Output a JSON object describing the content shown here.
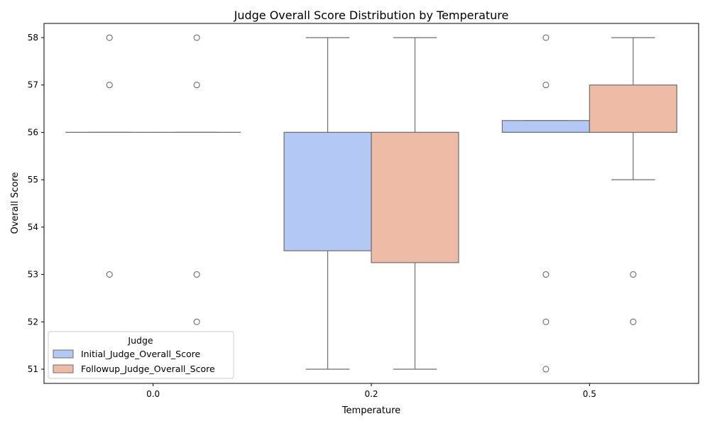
{
  "chart_data": {
    "type": "box",
    "title": "Judge Overall Score Distribution by Temperature",
    "xlabel": "Temperature",
    "ylabel": "Overall Score",
    "categories": [
      "0.0",
      "0.2",
      "0.5"
    ],
    "ylim": [
      50.7,
      58.3
    ],
    "yticks": [
      51,
      52,
      53,
      54,
      55,
      56,
      57,
      58
    ],
    "legend": {
      "title": "Judge",
      "position": "lower-left"
    },
    "colors": {
      "axis": "#000000",
      "box_edge": "#6e6e6e",
      "outlier_edge": "#6e6e6e"
    },
    "series": [
      {
        "name": "Initial_Judge_Overall_Score",
        "color": "#b3c8f4",
        "boxes": [
          {
            "q1": 56,
            "median": 56,
            "q3": 56,
            "whisker_low": 56,
            "whisker_high": 56,
            "outliers": [
              58,
              57,
              53
            ]
          },
          {
            "q1": 53.5,
            "median": 56,
            "q3": 56,
            "whisker_low": 51,
            "whisker_high": 58,
            "outliers": []
          },
          {
            "q1": 56,
            "median": 56,
            "q3": 56.25,
            "whisker_low": 56,
            "whisker_high": 56.25,
            "outliers": [
              58,
              57,
              53,
              52,
              51
            ]
          }
        ]
      },
      {
        "name": "Followup_Judge_Overall_Score",
        "color": "#eebba6",
        "boxes": [
          {
            "q1": 56,
            "median": 56,
            "q3": 56,
            "whisker_low": 56,
            "whisker_high": 56,
            "outliers": [
              58,
              57,
              53,
              52
            ]
          },
          {
            "q1": 53.25,
            "median": 56,
            "q3": 56,
            "whisker_low": 51,
            "whisker_high": 58,
            "outliers": []
          },
          {
            "q1": 56,
            "median": 56,
            "q3": 57,
            "whisker_low": 55,
            "whisker_high": 58,
            "outliers": [
              53,
              52
            ]
          }
        ]
      }
    ]
  }
}
